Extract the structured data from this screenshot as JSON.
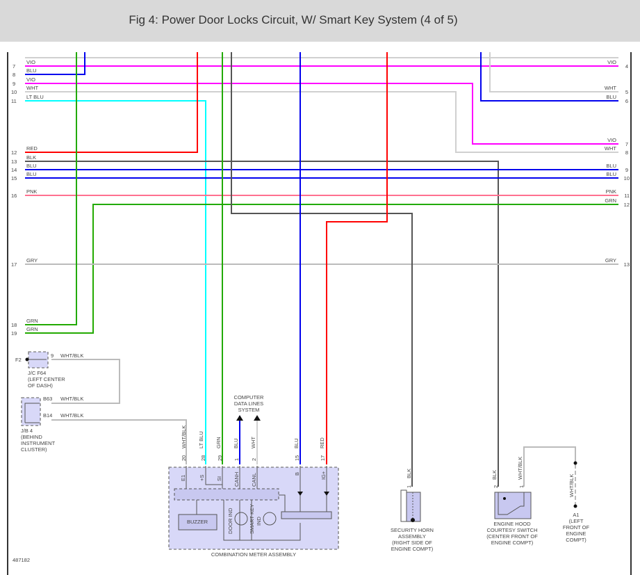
{
  "title": "Fig 4: Power Door Locks Circuit, W/ Smart Key System (4 of 5)",
  "figure_id": "487182",
  "left_wires": [
    {
      "num": "7",
      "color": "VIO"
    },
    {
      "num": "8",
      "color": "BLU"
    },
    {
      "num": "9",
      "color": "VIO"
    },
    {
      "num": "10",
      "color": "WHT"
    },
    {
      "num": "11",
      "color": "LT BLU"
    },
    {
      "num": "12",
      "color": "RED"
    },
    {
      "num": "13",
      "color": "BLK"
    },
    {
      "num": "14",
      "color": "BLU"
    },
    {
      "num": "15",
      "color": "BLU"
    },
    {
      "num": "16",
      "color": "PNK"
    },
    {
      "num": "17",
      "color": "GRY"
    },
    {
      "num": "18",
      "color": "GRN"
    },
    {
      "num": "19",
      "color": "GRN"
    }
  ],
  "right_wires": [
    {
      "num": "4",
      "color": "VIO"
    },
    {
      "num": "5",
      "color": "WHT"
    },
    {
      "num": "6",
      "color": "BLU"
    },
    {
      "num": "7",
      "color": "VIO"
    },
    {
      "num": "8",
      "color": "WHT"
    },
    {
      "num": "9",
      "color": "BLU"
    },
    {
      "num": "10",
      "color": "BLU"
    },
    {
      "num": "11",
      "color": "PNK"
    },
    {
      "num": "12",
      "color": "GRN"
    },
    {
      "num": "13",
      "color": "GRY"
    }
  ],
  "jc": {
    "ground": "F2",
    "pin": "9",
    "wire": "WHT/BLK",
    "name": "J/C F64",
    "loc1": "(LEFT CENTER",
    "loc2": "OF DASH)"
  },
  "jb": {
    "pin1": "B63",
    "wire1": "WHT/BLK",
    "pin2": "B14",
    "wire2": "WHT/BLK",
    "name": "J/B 4",
    "loc1": "(BEHIND",
    "loc2": "INSTRUMENT",
    "loc3": "CLUSTER)"
  },
  "data_lines": {
    "l1": "COMPUTER",
    "l2": "DATA LINES",
    "l3": "SYSTEM"
  },
  "meter": {
    "name": "COMBINATION METER ASSEMBLY",
    "buzzer": "BUZZER",
    "door_ind": "DOOR IND",
    "smart1": "SMART KEY",
    "smart2": "IND",
    "pins": [
      {
        "num": "20",
        "wire": "WHT/BLK",
        "term": "E1"
      },
      {
        "num": "28",
        "wire": "LT BLU",
        "term": "+S"
      },
      {
        "num": "29",
        "wire": "GRN",
        "term": "SI"
      },
      {
        "num": "1",
        "wire": "BLU",
        "term": "CANH"
      },
      {
        "num": "2",
        "wire": "WHT",
        "term": "CANL"
      },
      {
        "num": "15",
        "wire": "BLU",
        "term": "B"
      },
      {
        "num": "17",
        "wire": "RED",
        "term": "IG+"
      }
    ]
  },
  "horn": {
    "pin": "1",
    "wire": "BLK",
    "l1": "SECURITY HORN",
    "l2": "ASSEMBLY",
    "l3": "(RIGHT SIDE OF",
    "l4": "ENGINE COMPT)"
  },
  "hood": {
    "pin2": "2",
    "wire2": "BLK",
    "pin1": "1",
    "wire1": "WHT/BLK",
    "l1": "ENGINE HOOD",
    "l2": "COURTESY SWITCH",
    "l3": "(CENTER FRONT OF",
    "l4": "ENGINE COMPT)"
  },
  "ground_a1": {
    "wire": "WHT/BLK",
    "name": "A1",
    "l1": "(LEFT",
    "l2": "FRONT OF",
    "l3": "ENGINE",
    "l4": "COMPT)"
  },
  "colors": {
    "VIO": "#ff00ff",
    "BLU": "#0000ee",
    "WHT": "#d0d0d0",
    "LT BLU": "#00ffff",
    "RED": "#ff0000",
    "BLK": "#555555",
    "PNK": "#ff7090",
    "GRN": "#22aa00",
    "GRY": "#bbbbbb"
  }
}
